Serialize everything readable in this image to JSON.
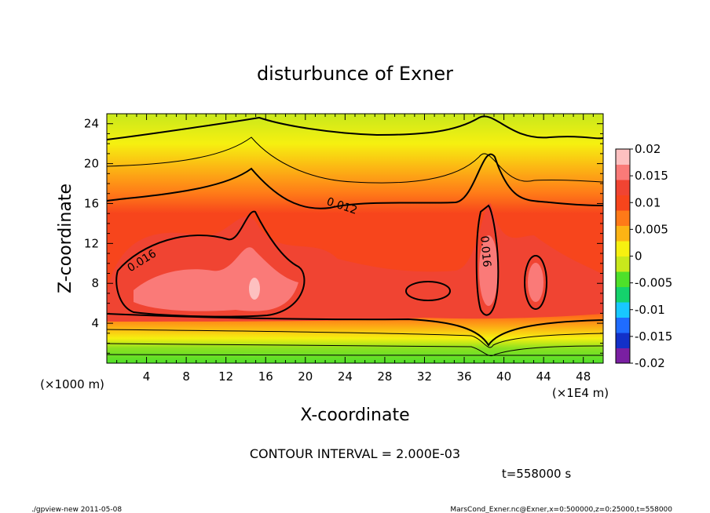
{
  "chart_data": {
    "type": "heatmap",
    "title": "disturbunce of Exner",
    "xlabel": "X-coordinate",
    "ylabel": "Z-coordinate",
    "x_unit_label": "(×1000 m)",
    "x_scale_label": "(×1E4 m)",
    "xlim": [
      0,
      50
    ],
    "ylim": [
      0,
      25
    ],
    "x_ticks": [
      "4",
      "8",
      "12",
      "16",
      "20",
      "24",
      "28",
      "32",
      "36",
      "40",
      "44",
      "48"
    ],
    "y_ticks": [
      "4",
      "8",
      "12",
      "16",
      "20",
      "24"
    ],
    "contour_interval_text": "CONTOUR INTERVAL = 2.000E-03",
    "time_text": "t=558000 s",
    "contour_labels": [
      {
        "text": "0.016",
        "x": 3.5,
        "y": 10.3,
        "rotate": -32
      },
      {
        "text": "0.012",
        "x": 23.7,
        "y": 15.8,
        "rotate": 18
      },
      {
        "text": "0.016",
        "x": 38.2,
        "y": 11.2,
        "rotate": 85
      }
    ],
    "colorbar": {
      "ticks": [
        "0.02",
        "0.015",
        "0.01",
        "0.005",
        "0",
        "-0.005",
        "-0.01",
        "-0.015",
        "-0.02"
      ],
      "levels": [
        -0.02,
        0.02
      ],
      "colors": [
        "#7a1fa2",
        "#1230c8",
        "#1f6cff",
        "#18c8ff",
        "#14d26c",
        "#4ee02a",
        "#c8e81c",
        "#f6f010",
        "#fcb414",
        "#ff7a18",
        "#f7451c",
        "#f04432",
        "#fa7a78",
        "#fdc0c0"
      ]
    }
  },
  "footer": {
    "left": "./gpview-new   2011-05-08",
    "right": "MarsCond_Exner.nc@Exner,x=0:500000,z=0:25000,t=558000"
  }
}
